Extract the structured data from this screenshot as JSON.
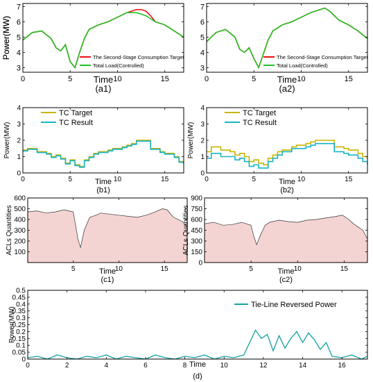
{
  "chart_data": [
    {
      "id": "a1",
      "type": "line",
      "panel_label": "(a1)",
      "xlabel": "Time",
      "ylabel": "Power(MW)",
      "xlim": [
        0,
        17
      ],
      "ylim": [
        2.7,
        7.2
      ],
      "xticks": [
        0,
        5,
        10,
        15
      ],
      "yticks": [
        3,
        4,
        5,
        6,
        7
      ],
      "legend_position": "bottom-right",
      "series": [
        {
          "name": "The Second-Stage Consumption Target",
          "color": "#ee1111",
          "style": "line",
          "x": [
            0,
            1,
            2,
            3,
            3.5,
            4,
            4.5,
            5,
            5.5,
            6,
            6.5,
            7,
            8,
            9,
            10,
            11,
            11.5,
            12,
            12.5,
            13,
            13.5,
            14,
            15,
            16,
            17
          ],
          "y": [
            4.8,
            5.3,
            5.4,
            4.9,
            4.3,
            4.1,
            4.5,
            3.4,
            3.0,
            4.0,
            4.9,
            5.5,
            5.8,
            6.0,
            6.3,
            6.6,
            6.7,
            6.8,
            6.8,
            6.7,
            6.4,
            6.0,
            5.8,
            5.4,
            5.0
          ]
        },
        {
          "name": "Total Load(Controlled)",
          "color": "#22c022",
          "style": "line",
          "x": [
            0,
            1,
            2,
            3,
            3.5,
            4,
            4.5,
            5,
            5.5,
            6,
            6.5,
            7,
            8,
            9,
            10,
            11,
            11.5,
            12,
            12.5,
            13,
            13.5,
            14,
            15,
            16,
            17
          ],
          "y": [
            4.8,
            5.3,
            5.4,
            4.9,
            4.3,
            4.1,
            4.5,
            3.4,
            3.0,
            4.0,
            4.9,
            5.5,
            5.8,
            6.0,
            6.3,
            6.6,
            6.6,
            6.6,
            6.5,
            6.4,
            6.2,
            6.0,
            5.8,
            5.4,
            5.0
          ]
        }
      ]
    },
    {
      "id": "a2",
      "type": "line",
      "panel_label": "(a2)",
      "xlabel": "Time",
      "ylabel": "Power(MW)",
      "xlim": [
        0,
        17
      ],
      "ylim": [
        2.7,
        7.2
      ],
      "xticks": [
        0,
        5,
        10,
        15
      ],
      "yticks": [
        3,
        4,
        5,
        6,
        7
      ],
      "legend_position": "bottom-right",
      "series": [
        {
          "name": "The Second-Stage Consumption Target",
          "color": "#ee1111",
          "style": "line",
          "x": [
            0,
            1,
            2,
            3,
            3.5,
            4,
            4.5,
            5,
            5.5,
            6,
            6.5,
            7,
            8,
            9,
            10,
            11,
            12,
            12.5,
            13,
            14,
            15,
            16,
            17
          ],
          "y": [
            4.7,
            5.3,
            5.5,
            5.0,
            4.2,
            4.0,
            4.3,
            3.6,
            3.0,
            3.9,
            4.8,
            5.4,
            5.8,
            6.0,
            6.3,
            6.6,
            6.8,
            6.9,
            6.7,
            6.1,
            5.8,
            5.4,
            4.9
          ]
        },
        {
          "name": "Total Load(Controlled)",
          "color": "#22c022",
          "style": "line",
          "x": [
            0,
            1,
            2,
            3,
            3.5,
            4,
            4.5,
            5,
            5.5,
            6,
            6.5,
            7,
            8,
            9,
            10,
            11,
            12,
            12.5,
            13,
            14,
            15,
            16,
            17
          ],
          "y": [
            4.7,
            5.3,
            5.5,
            5.0,
            4.2,
            4.0,
            4.3,
            3.6,
            3.0,
            3.9,
            4.8,
            5.4,
            5.8,
            6.0,
            6.3,
            6.6,
            6.8,
            6.9,
            6.7,
            6.1,
            5.8,
            5.4,
            4.9
          ]
        }
      ]
    },
    {
      "id": "b1",
      "type": "line",
      "panel_label": "(b1)",
      "xlabel": "Time",
      "ylabel": "Power(MW)",
      "xlim": [
        0,
        17
      ],
      "ylim": [
        0,
        4
      ],
      "xticks": [
        0,
        5,
        10,
        15
      ],
      "yticks": [
        0,
        1,
        2,
        3,
        4
      ],
      "legend_position": "top-left",
      "series": [
        {
          "name": "TC Target",
          "color": "#c8b400",
          "style": "step",
          "x": [
            0,
            0.5,
            1.5,
            2.5,
            3,
            3.5,
            4,
            4.5,
            5,
            5.5,
            6,
            6.5,
            7,
            7.5,
            8,
            9,
            9.5,
            10.5,
            11,
            11.5,
            12,
            13,
            13.5,
            14.5,
            15,
            16,
            16.5,
            17
          ],
          "y": [
            1.4,
            1.5,
            1.3,
            1.2,
            1.0,
            1.1,
            0.9,
            0.6,
            0.8,
            0.5,
            0.4,
            0.8,
            1.0,
            1.2,
            1.3,
            1.4,
            1.5,
            1.6,
            1.7,
            1.8,
            2.0,
            2.0,
            1.5,
            1.3,
            1.2,
            1.0,
            0.7,
            0.6
          ]
        },
        {
          "name": "TC Result",
          "color": "#17b3c6",
          "style": "step",
          "x": [
            0,
            0.5,
            1.5,
            2.5,
            3,
            3.5,
            4,
            4.5,
            5,
            5.5,
            6,
            6.5,
            7,
            7.5,
            8,
            9,
            9.5,
            10.5,
            11,
            11.5,
            12,
            13,
            13.5,
            14.5,
            15,
            16,
            16.5,
            17
          ],
          "y": [
            1.35,
            1.45,
            1.25,
            1.15,
            0.95,
            1.05,
            0.85,
            0.55,
            0.75,
            0.45,
            0.35,
            0.75,
            0.95,
            1.15,
            1.25,
            1.35,
            1.45,
            1.55,
            1.65,
            1.75,
            1.95,
            1.95,
            1.45,
            1.25,
            1.15,
            0.95,
            0.65,
            0.55
          ]
        }
      ]
    },
    {
      "id": "b2",
      "type": "line",
      "panel_label": "(b2)",
      "xlabel": "Time",
      "ylabel": "Power(MW)",
      "xlim": [
        0,
        17
      ],
      "ylim": [
        0,
        4
      ],
      "xticks": [
        0,
        5,
        10,
        15
      ],
      "yticks": [
        0,
        1,
        2,
        3,
        4
      ],
      "legend_position": "top-left",
      "series": [
        {
          "name": "TC Target",
          "color": "#c8b400",
          "style": "step",
          "x": [
            0,
            0.5,
            1.5,
            2.5,
            3,
            3.5,
            4,
            4.5,
            5,
            5.5,
            6,
            6.5,
            7,
            7.5,
            8,
            9,
            9.5,
            10.5,
            11,
            11.5,
            12,
            13,
            13.5,
            14.5,
            15,
            16,
            16.5,
            17
          ],
          "y": [
            1.3,
            1.6,
            1.4,
            1.3,
            1.1,
            1.2,
            1.0,
            0.7,
            0.8,
            0.6,
            0.5,
            0.9,
            1.1,
            1.3,
            1.4,
            1.6,
            1.7,
            1.8,
            1.9,
            2.0,
            2.0,
            2.0,
            1.6,
            1.5,
            1.4,
            1.2,
            1.0,
            0.8
          ]
        },
        {
          "name": "TC Result",
          "color": "#17b3c6",
          "style": "step",
          "x": [
            0,
            0.5,
            1.5,
            2.5,
            3,
            3.5,
            4,
            4.5,
            5,
            5.5,
            6,
            6.5,
            7,
            7.5,
            8,
            9,
            9.5,
            10.5,
            11,
            11.5,
            12,
            13,
            13.5,
            14.5,
            15,
            16,
            16.5,
            17
          ],
          "y": [
            0.9,
            1.2,
            1.0,
            1.0,
            0.8,
            0.9,
            0.7,
            0.4,
            0.5,
            0.3,
            0.3,
            0.7,
            0.9,
            1.1,
            1.3,
            1.5,
            1.5,
            1.6,
            1.7,
            1.8,
            1.8,
            1.8,
            1.3,
            1.2,
            1.1,
            0.9,
            0.7,
            0.5
          ]
        }
      ]
    },
    {
      "id": "c1",
      "type": "area",
      "panel_label": "(c1)",
      "xlabel": "Time",
      "ylabel": "ACLs Quantities",
      "xlim": [
        0,
        17.5
      ],
      "ylim": [
        0,
        600
      ],
      "xticks": [
        5,
        10,
        15
      ],
      "yticks": [
        100,
        200,
        300,
        400,
        500,
        600
      ],
      "legend_position": "none",
      "series": [
        {
          "color": "#333333",
          "fill": "#f4d4d2",
          "x": [
            0,
            1,
            2,
            3,
            4,
            5,
            5.5,
            5.8,
            6.2,
            6.8,
            7.5,
            8,
            9,
            10,
            11,
            12,
            13,
            14,
            14.8,
            15.3,
            16,
            17,
            17.5
          ],
          "y": [
            470,
            480,
            460,
            470,
            490,
            470,
            220,
            140,
            300,
            420,
            440,
            460,
            450,
            440,
            430,
            420,
            440,
            470,
            500,
            490,
            420,
            380,
            330
          ]
        }
      ]
    },
    {
      "id": "c2",
      "type": "area",
      "panel_label": "(c2)",
      "xlabel": "Time",
      "ylabel": "ACLs Quantities",
      "xlim": [
        0,
        17.5
      ],
      "ylim": [
        0,
        900
      ],
      "xticks": [
        5,
        10,
        15
      ],
      "yticks": [
        0,
        150,
        300,
        450,
        600,
        750,
        900
      ],
      "legend_position": "none",
      "series": [
        {
          "color": "#333333",
          "fill": "#f4d4d2",
          "x": [
            0,
            1,
            2,
            3,
            4,
            5,
            5.3,
            5.6,
            6,
            6.5,
            7,
            8,
            9,
            10,
            11,
            12,
            13,
            14,
            14.8,
            15.5,
            16,
            17,
            17.5
          ],
          "y": [
            540,
            560,
            520,
            530,
            560,
            520,
            360,
            250,
            380,
            520,
            560,
            590,
            570,
            560,
            590,
            600,
            620,
            640,
            660,
            600,
            540,
            450,
            330
          ]
        }
      ]
    },
    {
      "id": "d",
      "type": "line",
      "panel_label": "(d)",
      "xlabel": "Time",
      "ylabel": "Power(MW)",
      "xlim": [
        0,
        17.3
      ],
      "ylim": [
        0,
        0.5
      ],
      "xticks": [
        0,
        2,
        4,
        6,
        8,
        10,
        12,
        14,
        16
      ],
      "yticks": [
        0,
        0.05,
        0.1,
        0.15,
        0.2,
        0.25,
        0.3,
        0.35,
        0.4,
        0.45,
        0.5
      ],
      "ytick_labels": [
        "0",
        "0.05",
        "0.1",
        "0.15",
        "0.2",
        "0.25",
        "0.3",
        "0.35",
        "0.4",
        "0.45",
        "0.5"
      ],
      "legend_position": "top-right",
      "series": [
        {
          "name": "Tie-Line Reversed Power",
          "color": "#16a0a0",
          "style": "line",
          "x": [
            0,
            0.5,
            1,
            1.5,
            2,
            2.5,
            3,
            3.5,
            4,
            4.5,
            5,
            5.5,
            6,
            6.5,
            7,
            7.5,
            8,
            8.5,
            9,
            9.5,
            10,
            10.5,
            11,
            11.3,
            11.6,
            11.9,
            12.2,
            12.5,
            12.8,
            13.1,
            13.4,
            13.7,
            14,
            14.3,
            14.6,
            14.9,
            15.2,
            15.5,
            16,
            16.5,
            17,
            17.3
          ],
          "y": [
            0.01,
            0.02,
            0.0,
            0.03,
            0.01,
            0.0,
            0.02,
            0.01,
            0.03,
            0.0,
            0.02,
            0.01,
            0.0,
            0.03,
            0.01,
            0.0,
            0.02,
            0.01,
            0.03,
            0.0,
            0.02,
            0.01,
            0.03,
            0.12,
            0.21,
            0.15,
            0.18,
            0.06,
            0.17,
            0.08,
            0.15,
            0.2,
            0.12,
            0.19,
            0.14,
            0.07,
            0.12,
            0.02,
            0.01,
            0.03,
            0.0,
            0.02
          ]
        }
      ]
    }
  ]
}
